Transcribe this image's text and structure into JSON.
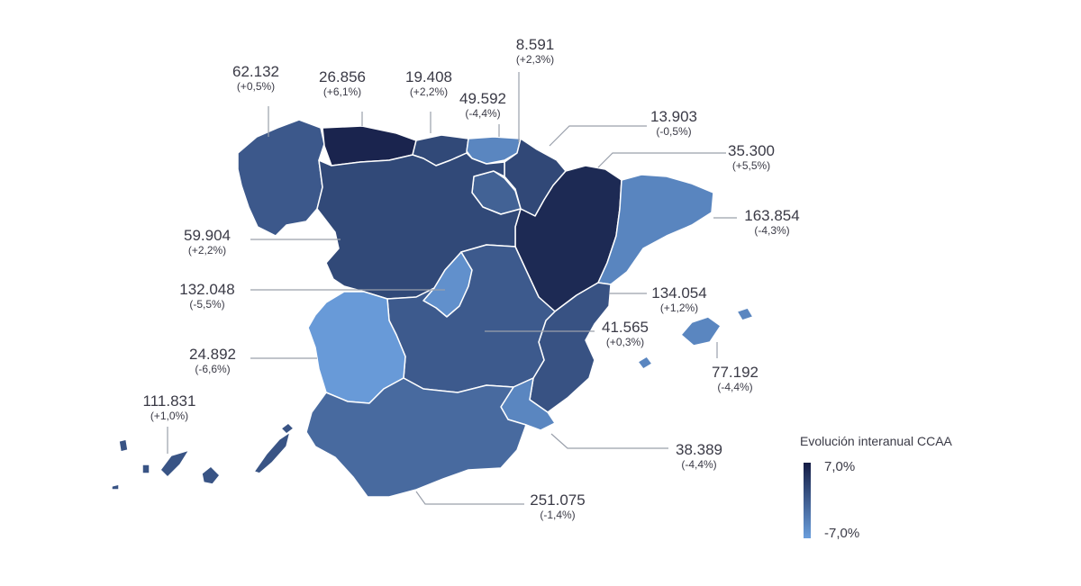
{
  "legend": {
    "title": "Evolución interanual CCAA",
    "max_label": "7,0%",
    "min_label": "-7,0%",
    "max_value": 7.0,
    "min_value": -7.0,
    "color_max": "#141c44",
    "color_min": "#6a9edc"
  },
  "regions": [
    {
      "id": "galicia",
      "value": "62.132",
      "change": "(+0,5%)",
      "pct": 0.5
    },
    {
      "id": "asturias",
      "value": "26.856",
      "change": "(+6,1%)",
      "pct": 6.1
    },
    {
      "id": "cantabria",
      "value": "19.408",
      "change": "(+2,2%)",
      "pct": 2.2
    },
    {
      "id": "pais-vasco",
      "value": "49.592",
      "change": "(-4,4%)",
      "pct": -4.4
    },
    {
      "id": "navarra",
      "value": "8.591",
      "change": "(+2,3%)",
      "pct": 2.3
    },
    {
      "id": "la-rioja",
      "value": "13.903",
      "change": "(-0,5%)",
      "pct": -0.5
    },
    {
      "id": "aragon",
      "value": "35.300",
      "change": "(+5,5%)",
      "pct": 5.5
    },
    {
      "id": "cataluna",
      "value": "163.854",
      "change": "(-4,3%)",
      "pct": -4.3
    },
    {
      "id": "castilla-y-leon",
      "value": "59.904",
      "change": "(+2,2%)",
      "pct": 2.2
    },
    {
      "id": "madrid",
      "value": "132.048",
      "change": "(-5,5%)",
      "pct": -5.5
    },
    {
      "id": "comunidad-valenciana",
      "value": "134.054",
      "change": "(+1,2%)",
      "pct": 1.2
    },
    {
      "id": "castilla-la-mancha",
      "value": "41.565",
      "change": "(+0,3%)",
      "pct": 0.3
    },
    {
      "id": "extremadura",
      "value": "24.892",
      "change": "(-6,6%)",
      "pct": -6.6
    },
    {
      "id": "baleares",
      "value": "77.192",
      "change": "(-4,4%)",
      "pct": -4.4
    },
    {
      "id": "canarias",
      "value": "111.831",
      "change": "(+1,0%)",
      "pct": 1.0
    },
    {
      "id": "murcia",
      "value": "38.389",
      "change": "(-4,4%)",
      "pct": -4.4
    },
    {
      "id": "andalucia",
      "value": "251.075",
      "change": "(-1,4%)",
      "pct": -1.4
    }
  ]
}
